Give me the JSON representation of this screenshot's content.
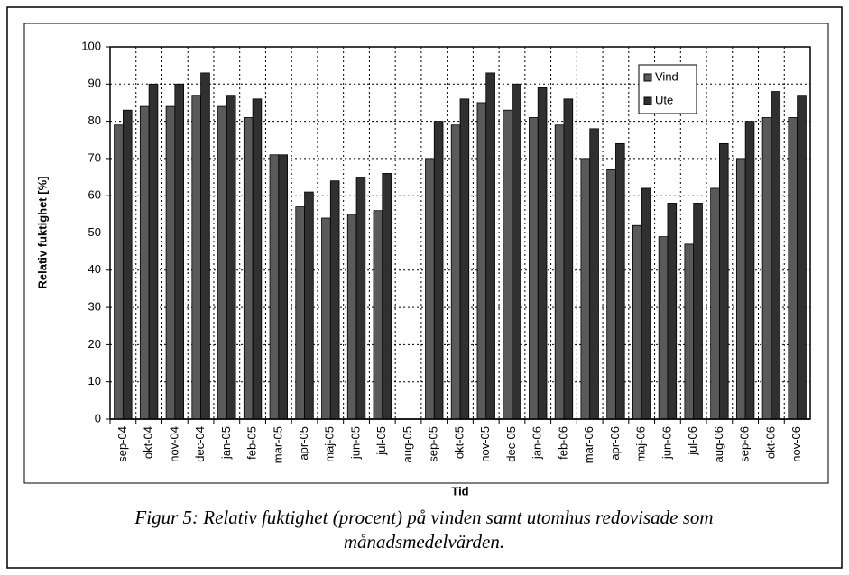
{
  "chart_data": {
    "type": "bar",
    "ylabel": "Relativ fuktighet [%]",
    "xlabel": "Tid",
    "caption": [
      "Figur 5: Relativ fuktighet (procent) på vinden samt utomhus redovisade som",
      "månadsmedelvärden."
    ],
    "categories": [
      "sep-04",
      "okt-04",
      "nov-04",
      "dec-04",
      "jan-05",
      "feb-05",
      "mar-05",
      "apr-05",
      "maj-05",
      "jun-05",
      "jul-05",
      "aug-05",
      "sep-05",
      "okt-05",
      "nov-05",
      "dec-05",
      "jan-06",
      "feb-06",
      "mar-06",
      "apr-06",
      "maj-06",
      "jun-06",
      "jul-06",
      "aug-06",
      "sep-06",
      "okt-06",
      "nov-06"
    ],
    "series": [
      {
        "name": "Vind",
        "color": "#5a5a5a",
        "values": [
          79,
          84,
          84,
          87,
          84,
          81,
          71,
          57,
          54,
          55,
          56,
          null,
          70,
          79,
          85,
          83,
          81,
          79,
          70,
          67,
          52,
          49,
          47,
          62,
          70,
          81,
          81
        ]
      },
      {
        "name": "Ute",
        "color": "#303030",
        "values": [
          83,
          90,
          90,
          93,
          87,
          86,
          71,
          61,
          64,
          65,
          66,
          null,
          80,
          86,
          93,
          90,
          89,
          86,
          78,
          74,
          62,
          58,
          58,
          74,
          80,
          88,
          87
        ]
      }
    ],
    "ylim": [
      0,
      100
    ],
    "yticks": [
      0,
      10,
      20,
      30,
      40,
      50,
      60,
      70,
      80,
      90,
      100
    ],
    "grid": true,
    "legend": "top-right"
  }
}
